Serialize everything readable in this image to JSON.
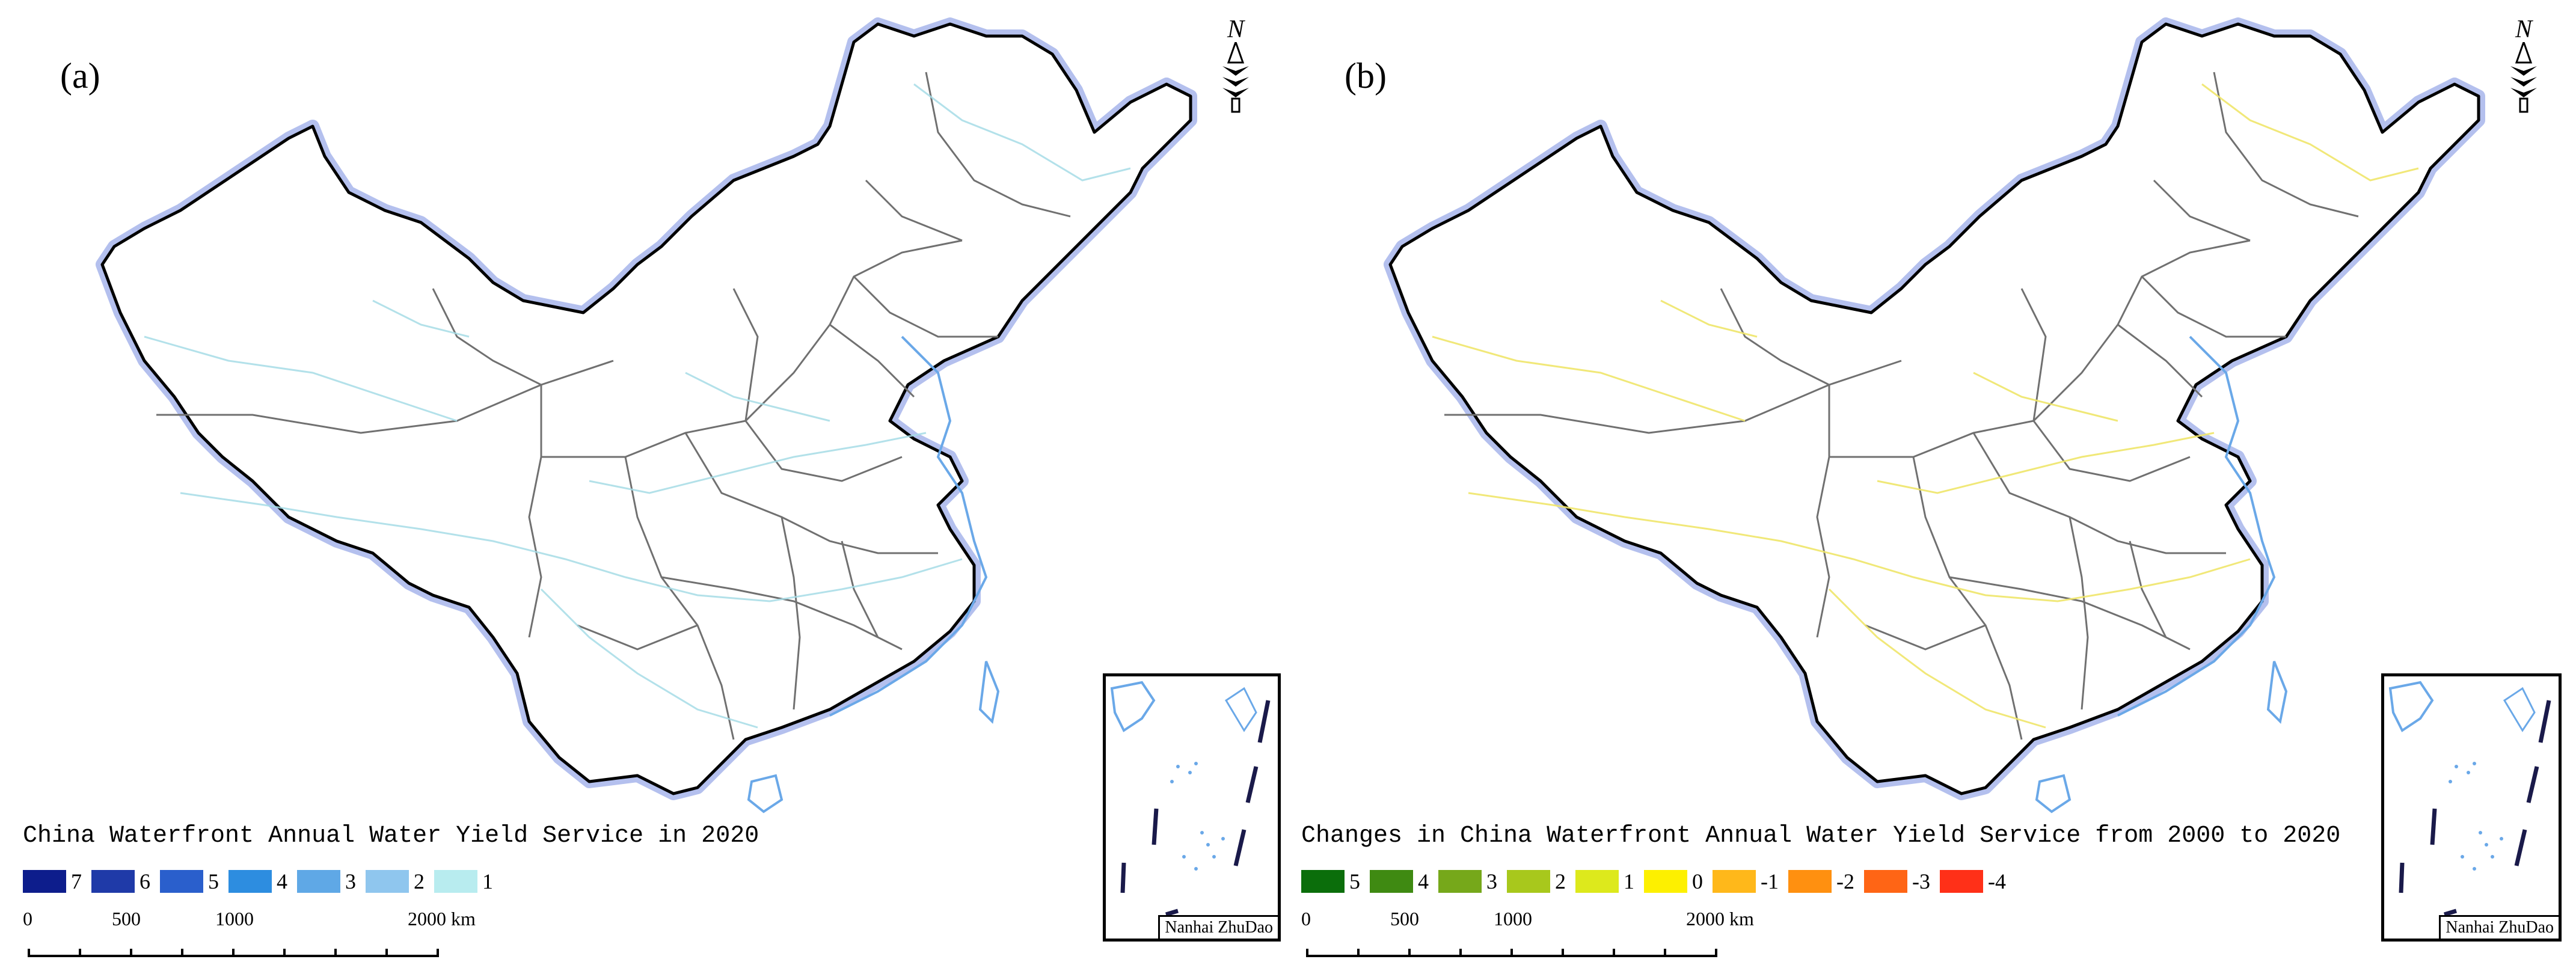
{
  "panels": [
    {
      "label": "(a)",
      "legend_title": "China Waterfront Annual Water Yield Service in 2020",
      "legend": [
        {
          "label": "7",
          "color": "#0d1d8c"
        },
        {
          "label": "6",
          "color": "#1f3aa8"
        },
        {
          "label": "5",
          "color": "#2a5fcc"
        },
        {
          "label": "4",
          "color": "#2d8de0"
        },
        {
          "label": "3",
          "color": "#5fa8e6"
        },
        {
          "label": "2",
          "color": "#8fc6ee"
        },
        {
          "label": "1",
          "color": "#b8ecef"
        }
      ],
      "river_color": "#a6dce6",
      "inset_label": "Nanhai ZhuDao",
      "north": "N"
    },
    {
      "label": "(b)",
      "legend_title": "Changes in China Waterfront Annual Water Yield Service from 2000 to 2020",
      "legend": [
        {
          "label": "5",
          "color": "#0b6e0b"
        },
        {
          "label": "4",
          "color": "#3f8a12"
        },
        {
          "label": "3",
          "color": "#76a81a"
        },
        {
          "label": "2",
          "color": "#a8c81c"
        },
        {
          "label": "1",
          "color": "#dde91c"
        },
        {
          "label": "0",
          "color": "#fdf000"
        },
        {
          "label": "-1",
          "color": "#ffb81a"
        },
        {
          "label": "-2",
          "color": "#ff9010"
        },
        {
          "label": "-3",
          "color": "#ff6515"
        },
        {
          "label": "-4",
          "color": "#ff3018"
        }
      ],
      "river_color": "#efe66a",
      "inset_label": "Nanhai ZhuDao",
      "north": "N"
    }
  ],
  "scale_bar": {
    "labels": [
      "0",
      "500",
      "1000",
      "2000 km"
    ]
  },
  "colors": {
    "border_halo": "#b4c0ee",
    "province_lines": "#707070",
    "coast_rivers": "#6aa8e8"
  }
}
